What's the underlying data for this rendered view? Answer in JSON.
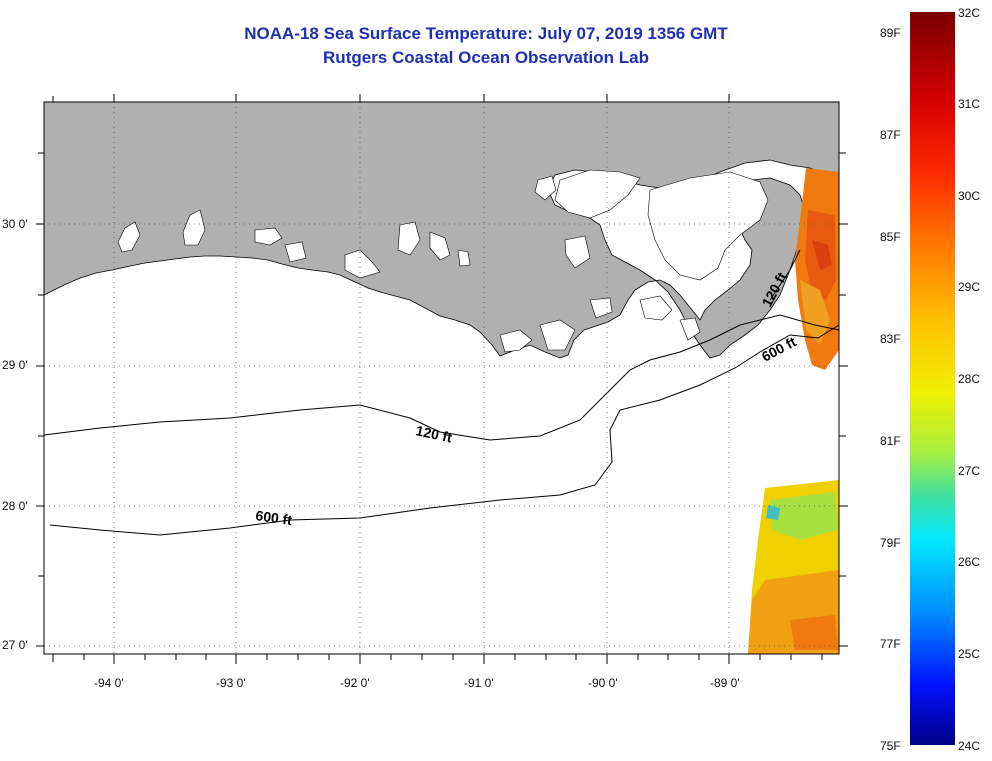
{
  "title": {
    "line1": "NOAA-18 Sea Surface Temperature:  July 07, 2019 1356 GMT",
    "line2": "Rutgers Coastal Ocean Observation Lab"
  },
  "map": {
    "lat_labels": [
      "30 0'",
      "29 0'",
      "28 0'",
      "27 0'"
    ],
    "lon_labels": [
      "-94 0'",
      "-93 0'",
      "-92 0'",
      "-91 0'",
      "-90 0'",
      "-89 0'"
    ],
    "lon_range": [
      -94.5,
      -88.0
    ],
    "lat_range": [
      26.95,
      30.85
    ],
    "land_color": "#b0b0b0",
    "ocean_color": "#ffffff",
    "contours": [
      {
        "label": "120 ft"
      },
      {
        "label": "600 ft"
      },
      {
        "label": "120 ft"
      },
      {
        "label": "600 ft"
      }
    ]
  },
  "colorbar": {
    "celsius_labels": [
      "32C",
      "31C",
      "30C",
      "29C",
      "28C",
      "27C",
      "26C",
      "25C",
      "24C"
    ],
    "fahrenheit_labels": [
      "89F",
      "87F",
      "85F",
      "83F",
      "81F",
      "79F",
      "77F",
      "75F"
    ],
    "colors": [
      "#7a0000",
      "#d40000",
      "#ff2a00",
      "#ff7a00",
      "#ffc000",
      "#f0f000",
      "#a8f040",
      "#40e0a0",
      "#00e8ff",
      "#008cff",
      "#0010ff",
      "#000085"
    ]
  }
}
